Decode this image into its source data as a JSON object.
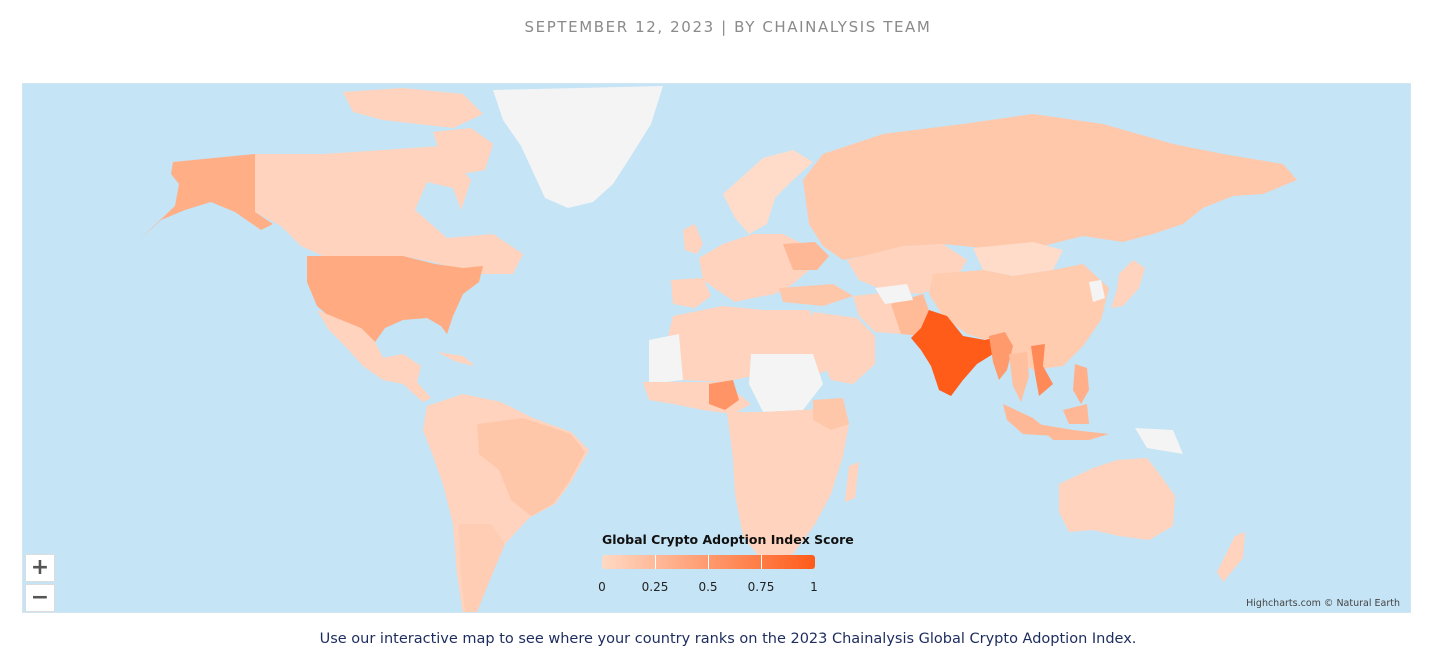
{
  "byline": "SEPTEMBER 12, 2023 | BY CHAINALYSIS TEAM",
  "map": {
    "legend_title": "Global Crypto Adoption Index Score",
    "legend_ticks": [
      "0",
      "0.25",
      "0.5",
      "0.75",
      "1"
    ],
    "credits": "Highcharts.com © Natural Earth",
    "zoom_in_symbol": "+",
    "zoom_out_symbol": "−",
    "colors": {
      "ocean": "#c5e4f5",
      "no_data": "#f4f4f4",
      "low": "#ffd9c4",
      "high": "#ff5b19"
    }
  },
  "chart_data": {
    "type": "heatmap",
    "title": "Global Crypto Adoption Index Score",
    "color_scale": [
      0,
      1
    ],
    "legend_ticks": [
      0,
      0.25,
      0.5,
      0.75,
      1
    ],
    "regions": [
      {
        "id": "india",
        "value": 1.0
      },
      {
        "id": "nigeria",
        "value": 0.6
      },
      {
        "id": "vietnam",
        "value": 0.6
      },
      {
        "id": "united-states",
        "value": 0.5
      },
      {
        "id": "alaska",
        "value": 0.5
      },
      {
        "id": "myanmar",
        "value": 0.55
      },
      {
        "id": "ukraine",
        "value": 0.45
      },
      {
        "id": "pakistan",
        "value": 0.35
      },
      {
        "id": "philippines",
        "value": 0.4
      },
      {
        "id": "indonesia",
        "value": 0.35
      },
      {
        "id": "thailand",
        "value": 0.3
      },
      {
        "id": "china",
        "value": 0.22
      },
      {
        "id": "brazil",
        "value": 0.25
      },
      {
        "id": "turkey",
        "value": 0.25
      },
      {
        "id": "kenya",
        "value": 0.2
      },
      {
        "id": "argentina",
        "value": 0.2
      },
      {
        "id": "russia",
        "value": 0.15
      },
      {
        "id": "canada",
        "value": 0.12
      },
      {
        "id": "mexico",
        "value": 0.15
      },
      {
        "id": "australia",
        "value": 0.12
      }
    ]
  },
  "caption": "Use our interactive map to see where your country ranks on the 2023 Chainalysis Global Crypto Adoption Index."
}
